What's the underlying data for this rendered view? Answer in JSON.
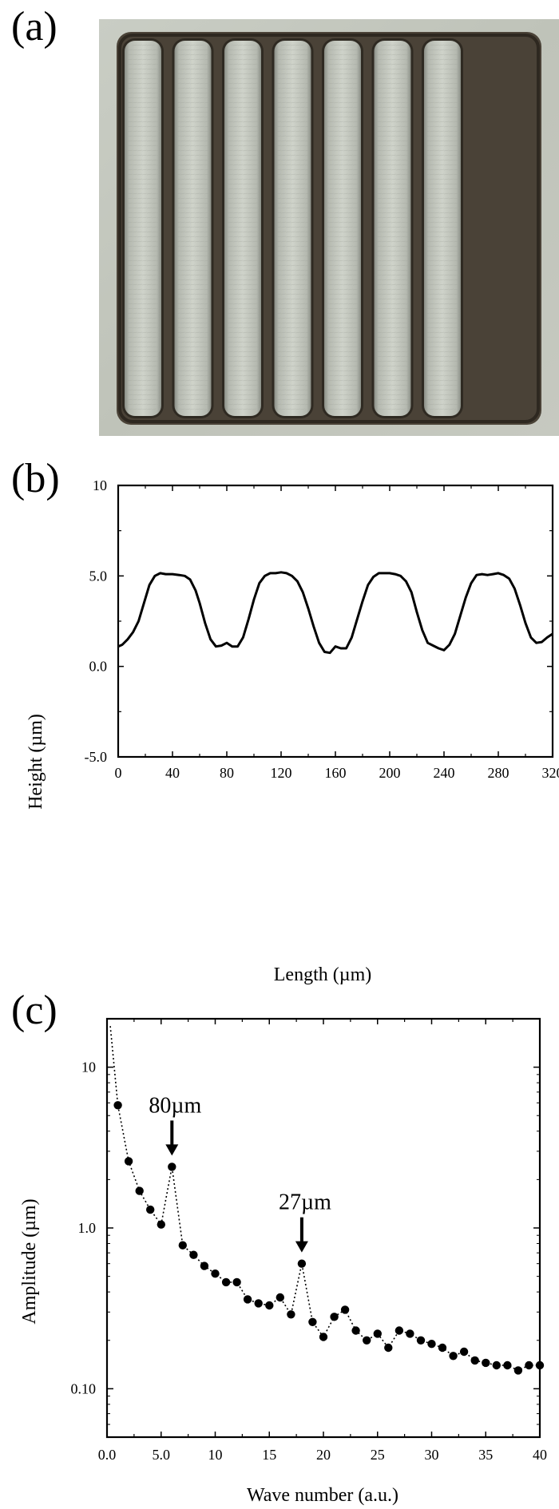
{
  "panels": {
    "a": "(a)",
    "b": "(b)",
    "c": "(c)"
  },
  "chart_data": [
    {
      "type": "line",
      "panel": "(b)",
      "xlabel": "Length (µm)",
      "ylabel": "Height (µm)",
      "xlim": [
        0,
        320
      ],
      "ylim": [
        -5,
        10
      ],
      "x_ticks": [
        "0",
        "40",
        "80",
        "120",
        "160",
        "200",
        "240",
        "280",
        "320"
      ],
      "y_ticks": [
        "-5.0",
        "0.0",
        "5.0",
        "10"
      ],
      "grid": false,
      "series": [
        {
          "x": [
            0,
            3,
            7,
            11,
            15,
            19,
            23,
            27,
            31,
            35,
            40,
            45,
            49,
            53,
            57,
            60,
            64,
            68,
            72,
            76,
            80,
            84,
            88,
            92,
            96,
            100,
            104,
            108,
            112,
            116,
            120,
            124,
            128,
            132,
            136,
            140,
            144,
            148,
            152,
            156,
            160,
            164,
            168,
            172,
            176,
            180,
            184,
            188,
            192,
            196,
            200,
            204,
            208,
            212,
            216,
            220,
            224,
            228,
            232,
            236,
            240,
            244,
            248,
            252,
            256,
            260,
            264,
            268,
            272,
            276,
            280,
            284,
            288,
            292,
            296,
            300,
            304,
            308,
            312,
            316,
            320
          ],
          "y": [
            1.1,
            1.2,
            1.5,
            1.9,
            2.5,
            3.5,
            4.5,
            5.0,
            5.15,
            5.1,
            5.1,
            5.05,
            5.0,
            4.8,
            4.2,
            3.5,
            2.4,
            1.5,
            1.1,
            1.15,
            1.3,
            1.1,
            1.1,
            1.6,
            2.6,
            3.7,
            4.6,
            5.0,
            5.15,
            5.15,
            5.2,
            5.15,
            5.0,
            4.7,
            4.1,
            3.2,
            2.2,
            1.3,
            0.8,
            0.75,
            1.1,
            1.0,
            1.0,
            1.6,
            2.6,
            3.6,
            4.5,
            4.95,
            5.15,
            5.15,
            5.15,
            5.1,
            5.0,
            4.7,
            4.1,
            3.0,
            2.0,
            1.3,
            1.15,
            1.0,
            0.9,
            1.2,
            1.8,
            2.8,
            3.8,
            4.6,
            5.05,
            5.1,
            5.05,
            5.1,
            5.15,
            5.05,
            4.85,
            4.3,
            3.4,
            2.4,
            1.6,
            1.3,
            1.35,
            1.6,
            1.8
          ]
        }
      ]
    },
    {
      "type": "scatter",
      "panel": "(c)",
      "xlabel": "Wave number (a.u.)",
      "ylabel": "Amplitude (µm)",
      "xlim": [
        0,
        40
      ],
      "ylim": [
        0.05,
        20
      ],
      "y_scale": "log",
      "x_ticks": [
        "0.0",
        "5.0",
        "10",
        "15",
        "20",
        "25",
        "30",
        "35",
        "40"
      ],
      "y_ticks": [
        "0.10",
        "1.0",
        "10"
      ],
      "grid": false,
      "annotations": [
        {
          "label": "80µm",
          "x": 6,
          "y": 2.4
        },
        {
          "label": "27µm",
          "x": 18,
          "y": 0.6
        }
      ],
      "line_start": {
        "x": 0.3,
        "y": 18
      },
      "series": [
        {
          "x": [
            1,
            2,
            3,
            4,
            5,
            6,
            7,
            8,
            9,
            10,
            11,
            12,
            13,
            14,
            15,
            16,
            17,
            18,
            19,
            20,
            21,
            22,
            23,
            24,
            25,
            26,
            27,
            28,
            29,
            30,
            31,
            32,
            33,
            34,
            35,
            36,
            37,
            38,
            39,
            40
          ],
          "y": [
            5.8,
            2.6,
            1.7,
            1.3,
            1.05,
            2.4,
            0.78,
            0.68,
            0.58,
            0.52,
            0.46,
            0.46,
            0.36,
            0.34,
            0.33,
            0.37,
            0.29,
            0.6,
            0.26,
            0.21,
            0.28,
            0.31,
            0.23,
            0.2,
            0.22,
            0.18,
            0.23,
            0.22,
            0.2,
            0.19,
            0.18,
            0.16,
            0.17,
            0.15,
            0.145,
            0.14,
            0.14,
            0.13,
            0.14,
            0.14
          ]
        }
      ]
    }
  ]
}
